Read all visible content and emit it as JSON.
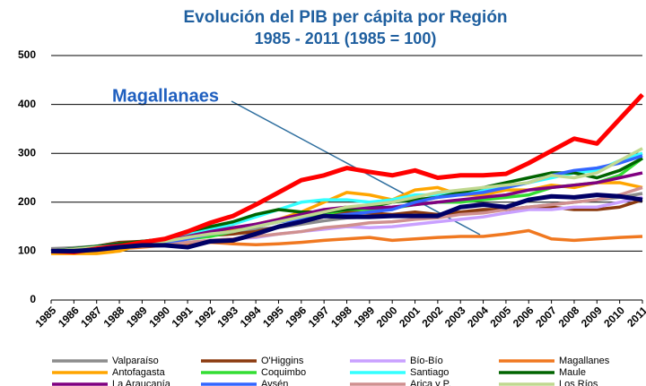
{
  "chart_data": {
    "type": "line",
    "title": "Evolución del PIB per cápita por Región",
    "subtitle": "1985 - 2011 (1985 = 100)",
    "annotation": "Magallanaes",
    "categories": [
      "1985",
      "1986",
      "1987",
      "1988",
      "1989",
      "1990",
      "1991",
      "1992",
      "1993",
      "1994",
      "1995",
      "1996",
      "1997",
      "1998",
      "1999",
      "2000",
      "2001",
      "2002",
      "2003",
      "2004",
      "2005",
      "2006",
      "2007",
      "2008",
      "2009",
      "2010",
      "2011"
    ],
    "ylim": [
      0,
      500
    ],
    "yticks": [
      0,
      100,
      200,
      300,
      400,
      500
    ],
    "grid": true,
    "series": [
      {
        "name": "Valparaíso",
        "color": "#8c8c8c",
        "values": [
          105,
          107,
          110,
          115,
          120,
          125,
          130,
          135,
          140,
          145,
          148,
          155,
          162,
          168,
          170,
          172,
          170,
          175,
          178,
          182,
          185,
          190,
          195,
          200,
          205,
          210,
          218
        ]
      },
      {
        "name": "O'Higgins",
        "color": "#8b3a0f",
        "values": [
          100,
          105,
          110,
          118,
          120,
          122,
          128,
          132,
          135,
          140,
          150,
          160,
          170,
          180,
          178,
          175,
          180,
          175,
          180,
          185,
          185,
          190,
          190,
          185,
          185,
          190,
          205
        ]
      },
      {
        "name": "Bío-Bío",
        "color": "#c9a0ff",
        "values": [
          100,
          103,
          105,
          110,
          112,
          115,
          118,
          122,
          125,
          128,
          135,
          140,
          145,
          150,
          148,
          150,
          155,
          160,
          165,
          170,
          178,
          185,
          185,
          190,
          190,
          200,
          210
        ]
      },
      {
        "name": "Magallanes",
        "color": "#f07820",
        "values": [
          100,
          95,
          100,
          105,
          108,
          112,
          115,
          118,
          115,
          113,
          115,
          118,
          122,
          125,
          128,
          122,
          125,
          128,
          130,
          130,
          135,
          142,
          125,
          122,
          125,
          128,
          130
        ]
      },
      {
        "name": "Antofagasta",
        "color": "#ffa500",
        "values": [
          95,
          95,
          95,
          100,
          115,
          125,
          130,
          140,
          145,
          155,
          165,
          180,
          200,
          220,
          215,
          205,
          225,
          230,
          215,
          215,
          225,
          225,
          235,
          230,
          240,
          240,
          230
        ]
      },
      {
        "name": "Coquimbo",
        "color": "#33dd33",
        "values": [
          100,
          105,
          108,
          112,
          115,
          118,
          125,
          130,
          140,
          150,
          160,
          165,
          175,
          185,
          185,
          188,
          195,
          200,
          200,
          205,
          210,
          215,
          230,
          235,
          240,
          255,
          290
        ]
      },
      {
        "name": "Santiago",
        "color": "#33ffff",
        "values": [
          100,
          105,
          110,
          115,
          118,
          122,
          135,
          145,
          155,
          170,
          185,
          200,
          205,
          205,
          200,
          205,
          215,
          215,
          220,
          225,
          230,
          240,
          250,
          260,
          265,
          285,
          300
        ]
      },
      {
        "name": "Maule",
        "color": "#006400",
        "values": [
          100,
          105,
          110,
          115,
          120,
          125,
          140,
          150,
          160,
          175,
          185,
          180,
          180,
          185,
          190,
          200,
          205,
          210,
          220,
          230,
          240,
          250,
          260,
          260,
          250,
          265,
          290
        ]
      },
      {
        "name": "La Araucanía",
        "color": "#800080",
        "values": [
          100,
          104,
          108,
          112,
          115,
          120,
          130,
          140,
          148,
          155,
          165,
          175,
          185,
          190,
          188,
          190,
          195,
          200,
          205,
          210,
          215,
          225,
          230,
          235,
          240,
          250,
          260
        ]
      },
      {
        "name": "Aysén",
        "color": "#3366ff",
        "values": [
          100,
          102,
          105,
          110,
          112,
          115,
          125,
          135,
          140,
          150,
          160,
          165,
          170,
          175,
          180,
          185,
          200,
          210,
          215,
          220,
          230,
          240,
          255,
          265,
          270,
          280,
          295
        ]
      },
      {
        "name": "Arica y P.",
        "color": "#d09090",
        "values": [
          100,
          102,
          105,
          108,
          110,
          112,
          118,
          122,
          125,
          130,
          135,
          140,
          148,
          152,
          158,
          160,
          165,
          168,
          175,
          178,
          185,
          190,
          195,
          200,
          205,
          215,
          230
        ]
      },
      {
        "name": "Los Ríos",
        "color": "#c0d890",
        "values": [
          100,
          104,
          108,
          110,
          115,
          120,
          128,
          135,
          140,
          150,
          160,
          170,
          180,
          190,
          195,
          200,
          210,
          220,
          225,
          230,
          235,
          240,
          255,
          250,
          260,
          285,
          310
        ]
      },
      {
        "color": "#ff0000",
        "values": [
          100,
          98,
          105,
          110,
          118,
          125,
          140,
          158,
          172,
          195,
          220,
          245,
          255,
          270,
          262,
          255,
          265,
          250,
          255,
          255,
          258,
          280,
          305,
          330,
          320,
          370,
          420
        ]
      },
      {
        "color": "#000066",
        "values": [
          100,
          100,
          103,
          108,
          112,
          112,
          108,
          120,
          122,
          135,
          150,
          160,
          172,
          170,
          170,
          172,
          172,
          172,
          190,
          195,
          190,
          205,
          212,
          210,
          215,
          212,
          205
        ]
      }
    ]
  }
}
